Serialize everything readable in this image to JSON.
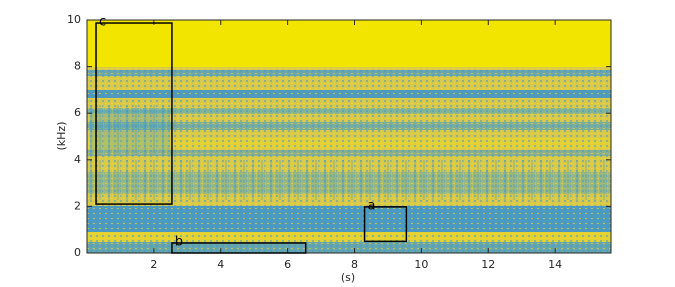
{
  "chart_data": {
    "type": "spectrogram",
    "xlabel": "(s)",
    "ylabel": "(kHz)",
    "xlim": [
      0,
      15.67
    ],
    "ylim": [
      0,
      10
    ],
    "xticks": [
      2,
      4,
      6,
      8,
      10,
      12,
      14
    ],
    "yticks": [
      0,
      2,
      4,
      6,
      8,
      10
    ],
    "box_color": "#000000",
    "annotations": [
      {
        "label": "a",
        "x": [
          8.3,
          9.55
        ],
        "y": [
          0.5,
          1.98
        ]
      },
      {
        "label": "b",
        "x": [
          2.54,
          6.54
        ],
        "y": [
          0,
          0.43
        ]
      },
      {
        "label": "c",
        "x": [
          0.27,
          2.54
        ],
        "y": [
          2.1,
          9.87
        ]
      }
    ]
  }
}
